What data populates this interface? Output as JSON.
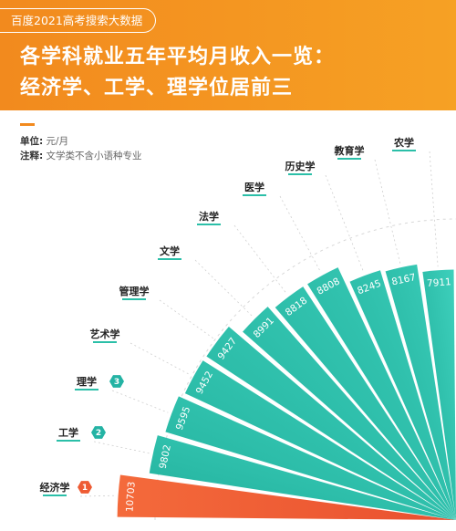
{
  "header": {
    "source_badge": "百度2021高考搜索大数据",
    "title_line1": "各学科就业五年平均月收入一览：",
    "title_line2": "经济学、工学、理学位居前三"
  },
  "notes": {
    "unit_key": "单位:",
    "unit_value": "元/月",
    "note_key": "注释:",
    "note_value": "文学类不含小语种专业"
  },
  "colors": {
    "header_orange": "#f28a1e",
    "teal": "#2bbfa8",
    "red_orange": "#ee5b33",
    "rank_badge": "#24b3a4"
  },
  "chart_data": {
    "type": "bar",
    "layout": "radial-fan",
    "categories": [
      "经济学",
      "工学",
      "理学",
      "艺术学",
      "管理学",
      "文学",
      "法学",
      "医学",
      "历史学",
      "教育学",
      "农学"
    ],
    "values": [
      10703,
      9802,
      9595,
      9452,
      9427,
      8991,
      8818,
      8808,
      8245,
      8167,
      7911
    ],
    "ranks": [
      "1",
      "2",
      "3",
      "",
      "",
      "",
      "",
      "",
      "",
      "",
      ""
    ],
    "highlight_index": 0
  }
}
